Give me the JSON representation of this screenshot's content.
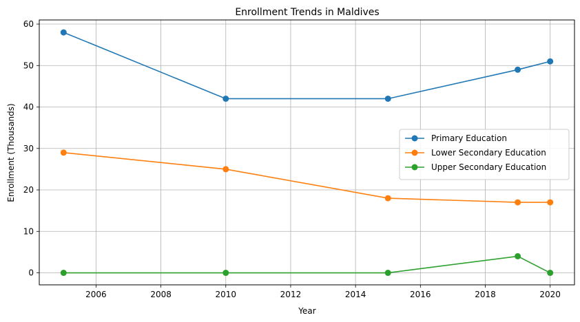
{
  "chart_data": {
    "type": "line",
    "title": "Enrollment Trends in Maldives",
    "xlabel": "Year",
    "ylabel": "Enrollment (Thousands)",
    "xlim": [
      2004.25,
      2020.75
    ],
    "ylim": [
      -2.9,
      61.0
    ],
    "x_ticks": [
      2006,
      2008,
      2010,
      2012,
      2014,
      2016,
      2018,
      2020
    ],
    "y_ticks": [
      0,
      10,
      20,
      30,
      40,
      50,
      60
    ],
    "grid": true,
    "legend_position": "center-right",
    "x": [
      2005,
      2010,
      2015,
      2019,
      2020
    ],
    "series": [
      {
        "name": "Primary Education",
        "color": "#1f77b4",
        "values": [
          58,
          42,
          42,
          49,
          51
        ]
      },
      {
        "name": "Lower Secondary Education",
        "color": "#ff7f0e",
        "values": [
          29,
          25,
          18,
          17,
          17
        ]
      },
      {
        "name": "Upper Secondary Education",
        "color": "#2ca02c",
        "values": [
          0,
          0,
          0,
          4,
          0
        ]
      }
    ]
  }
}
